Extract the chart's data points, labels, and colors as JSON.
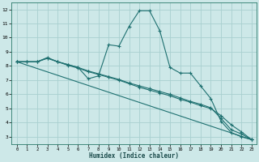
{
  "xlabel": "Humidex (Indice chaleur)",
  "xlim": [
    -0.5,
    23.5
  ],
  "ylim": [
    2.5,
    12.5
  ],
  "yticks": [
    3,
    4,
    5,
    6,
    7,
    8,
    9,
    10,
    11,
    12
  ],
  "xticks": [
    0,
    1,
    2,
    3,
    4,
    5,
    6,
    7,
    8,
    9,
    10,
    11,
    12,
    13,
    14,
    15,
    16,
    17,
    18,
    19,
    20,
    21,
    22,
    23
  ],
  "background_color": "#cde8e8",
  "grid_color": "#a8d0d0",
  "line_color": "#1e7070",
  "lines": [
    {
      "x": [
        0,
        1,
        2,
        3,
        4,
        5,
        6,
        7,
        8,
        9,
        10,
        11,
        12,
        13,
        14,
        15,
        16,
        17,
        18,
        19,
        20,
        21,
        22,
        23
      ],
      "y": [
        8.3,
        8.3,
        8.3,
        8.6,
        8.3,
        8.1,
        7.9,
        7.1,
        7.3,
        9.5,
        9.4,
        10.8,
        11.9,
        11.9,
        10.5,
        7.9,
        7.5,
        7.5,
        6.6,
        5.7,
        4.1,
        3.3,
        3.0,
        2.8
      ]
    },
    {
      "x": [
        0,
        1,
        2,
        3,
        4,
        5,
        6,
        7,
        8,
        9,
        10,
        11,
        12,
        13,
        14,
        15,
        16,
        17,
        18,
        19,
        20,
        21,
        22,
        23
      ],
      "y": [
        8.3,
        8.3,
        8.3,
        8.55,
        8.3,
        8.05,
        7.85,
        7.6,
        7.4,
        7.2,
        7.0,
        6.75,
        6.5,
        6.3,
        6.1,
        5.9,
        5.65,
        5.45,
        5.2,
        5.0,
        4.5,
        3.85,
        3.35,
        2.8
      ]
    },
    {
      "x": [
        0,
        1,
        2,
        3,
        4,
        5,
        6,
        7,
        8,
        9,
        10,
        11,
        12,
        13,
        14,
        15,
        16,
        17,
        18,
        19,
        20,
        21,
        22,
        23
      ],
      "y": [
        8.3,
        8.3,
        8.3,
        8.55,
        8.3,
        8.1,
        7.9,
        7.65,
        7.45,
        7.25,
        7.05,
        6.8,
        6.6,
        6.4,
        6.2,
        6.0,
        5.75,
        5.5,
        5.3,
        5.05,
        4.3,
        3.5,
        3.2,
        2.8
      ]
    },
    {
      "x": [
        0,
        23
      ],
      "y": [
        8.3,
        2.8
      ]
    }
  ]
}
